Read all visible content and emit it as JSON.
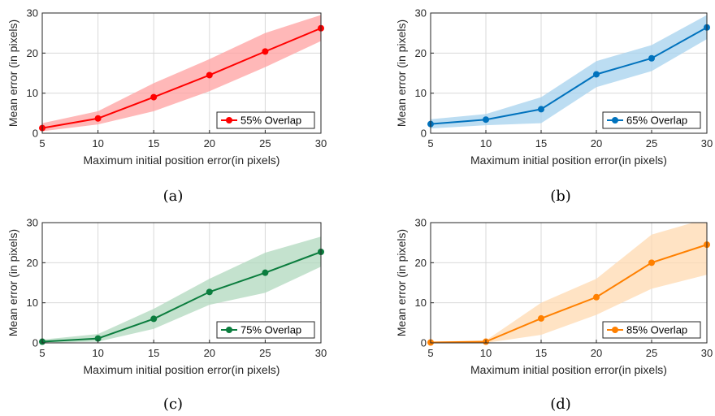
{
  "chart_data": [
    {
      "type": "line",
      "caption": "(a)",
      "xlabel": "Maximum initial position error(in pixels)",
      "ylabel": "Mean error (in pixels)",
      "xlim": [
        5,
        30
      ],
      "ylim": [
        0,
        30
      ],
      "xticks": [
        5,
        10,
        15,
        20,
        25,
        30
      ],
      "yticks": [
        0,
        10,
        20,
        30
      ],
      "grid": true,
      "legend_position": "lower-right",
      "color": "#ff0000",
      "band_color": "#ffa0a0",
      "x": [
        5,
        10,
        15,
        20,
        25,
        30
      ],
      "series": [
        {
          "name": "55% Overlap",
          "values": [
            1.3,
            3.7,
            9.0,
            14.5,
            20.4,
            26.2
          ],
          "band_upper": [
            2.5,
            5.5,
            12.5,
            18.5,
            25.0,
            29.5
          ],
          "band_lower": [
            0.5,
            2.2,
            5.5,
            10.5,
            16.5,
            23.0
          ]
        }
      ]
    },
    {
      "type": "line",
      "caption": "(b)",
      "xlabel": "Maximum initial position error(in pixels)",
      "ylabel": "Mean error (in pixels)",
      "xlim": [
        5,
        30
      ],
      "ylim": [
        0,
        30
      ],
      "xticks": [
        5,
        10,
        15,
        20,
        25,
        30
      ],
      "yticks": [
        0,
        10,
        20,
        30
      ],
      "grid": true,
      "legend_position": "lower-right",
      "color": "#0072bd",
      "band_color": "#a6d2ee",
      "x": [
        5,
        10,
        15,
        20,
        25,
        30
      ],
      "series": [
        {
          "name": "65% Overlap",
          "values": [
            2.3,
            3.4,
            6.0,
            14.7,
            18.7,
            26.4
          ],
          "band_upper": [
            3.5,
            4.8,
            9.0,
            18.0,
            22.0,
            29.5
          ],
          "band_lower": [
            1.2,
            2.0,
            2.5,
            11.5,
            15.5,
            23.5
          ]
        }
      ]
    },
    {
      "type": "line",
      "caption": "(c)",
      "xlabel": "Maximum initial position error(in pixels)",
      "ylabel": "Mean error (in pixels)",
      "xlim": [
        5,
        30
      ],
      "ylim": [
        0,
        30
      ],
      "xticks": [
        5,
        10,
        15,
        20,
        25,
        30
      ],
      "yticks": [
        0,
        10,
        20,
        30
      ],
      "grid": true,
      "legend_position": "lower-right",
      "color": "#0b7d3e",
      "band_color": "#b0d8bd",
      "x": [
        5,
        10,
        15,
        20,
        25,
        30
      ],
      "series": [
        {
          "name": "75% Overlap",
          "values": [
            0.3,
            1.1,
            6.0,
            12.7,
            17.5,
            22.7
          ],
          "band_upper": [
            0.8,
            2.2,
            8.5,
            16.0,
            22.5,
            26.5
          ],
          "band_lower": [
            0.0,
            0.3,
            3.5,
            9.5,
            12.5,
            19.0
          ]
        }
      ]
    },
    {
      "type": "line",
      "caption": "(d)",
      "xlabel": "Maximum initial position error(in pixels)",
      "ylabel": "Mean error (in pixels)",
      "xlim": [
        5,
        30
      ],
      "ylim": [
        0,
        30
      ],
      "xticks": [
        5,
        10,
        15,
        20,
        25,
        30
      ],
      "yticks": [
        0,
        10,
        20,
        30
      ],
      "grid": true,
      "legend_position": "lower-right",
      "color": "#ff8000",
      "band_color": "#ffd9b0",
      "x": [
        5,
        10,
        15,
        20,
        25,
        30
      ],
      "series": [
        {
          "name": "85% Overlap",
          "values": [
            0.1,
            0.3,
            6.1,
            11.4,
            20.0,
            24.5
          ],
          "band_upper": [
            0.3,
            0.6,
            10.0,
            16.0,
            27.0,
            31.0
          ],
          "band_lower": [
            0.0,
            0.0,
            2.0,
            7.0,
            13.5,
            17.0
          ]
        }
      ]
    }
  ]
}
